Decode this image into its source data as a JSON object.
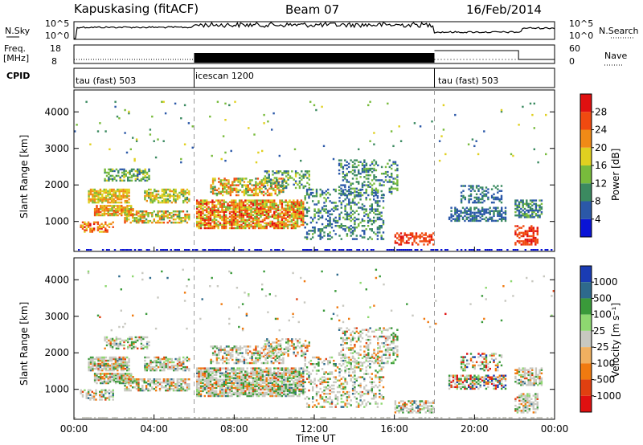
{
  "header": {
    "station": "Kapuskasing (fitACF)",
    "beam": "Beam 07",
    "date": "16/Feb/2014"
  },
  "strips": {
    "nsky_label": "N.Sky",
    "nsearch_label": "N.Search",
    "freq_label_1": "Freq.",
    "freq_label_2": "[MHz]",
    "nave_label": "Nave",
    "cpid_label": "CPID",
    "noise_ticks_left": [
      "10^5",
      "10^0"
    ],
    "noise_ticks_right": [
      "10^5",
      "10^0"
    ],
    "freq_ticks": [
      "18",
      "8"
    ],
    "nave_ticks": [
      "60",
      "0"
    ],
    "cpid_segments": [
      {
        "label": "tau (fast) 503",
        "start_hour": 0,
        "end_hour": 6
      },
      {
        "label": "icescan 1200",
        "start_hour": 6,
        "end_hour": 18
      },
      {
        "label": "tau (fast) 503",
        "start_hour": 18,
        "end_hour": 24
      }
    ]
  },
  "chart_data": [
    {
      "type": "heatmap",
      "panel": "power",
      "ylabel": "Slant Range [km]",
      "xlim": [
        0,
        24
      ],
      "ylim": [
        180,
        4600
      ],
      "yticks": [
        "4000",
        "3000",
        "2000",
        "1000"
      ],
      "ytick_values": [
        4000,
        3000,
        2000,
        1000
      ],
      "colorbar": {
        "label": "Power [dB]",
        "range": [
          0,
          32
        ],
        "tick_labels": [
          "28",
          "24",
          "20",
          "16",
          "12",
          "8",
          "4"
        ],
        "tick_values": [
          28,
          24,
          20,
          16,
          12,
          8,
          4
        ],
        "colors": [
          "#0a14d6",
          "#2b58a8",
          "#3b8a60",
          "#78bb3c",
          "#e0d020",
          "#f08a16",
          "#f04a10",
          "#e01010"
        ]
      }
    },
    {
      "type": "heatmap",
      "panel": "velocity",
      "ylabel": "Slant Range [km]",
      "xlabel": "Time UT",
      "xlim": [
        0,
        24
      ],
      "ylim": [
        180,
        4600
      ],
      "yticks": [
        "4000",
        "3000",
        "2000",
        "1000"
      ],
      "ytick_values": [
        4000,
        3000,
        2000,
        1000
      ],
      "xticks": [
        "00:00",
        "04:00",
        "08:00",
        "12:00",
        "16:00",
        "20:00",
        "00:00"
      ],
      "xtick_values": [
        0,
        4,
        8,
        12,
        16,
        20,
        24
      ],
      "colorbar": {
        "label": "Velocity [m s⁻¹]",
        "tick_labels": [
          "1000",
          "500",
          "100",
          "25",
          "-25",
          "-100",
          "-500",
          "-1000"
        ],
        "colors": [
          "#1a3cb4",
          "#2e6a8c",
          "#3a9a3a",
          "#8ed870",
          "#c8c8c0",
          "#f0b060",
          "#f07a10",
          "#e04010",
          "#e01010"
        ]
      }
    }
  ]
}
